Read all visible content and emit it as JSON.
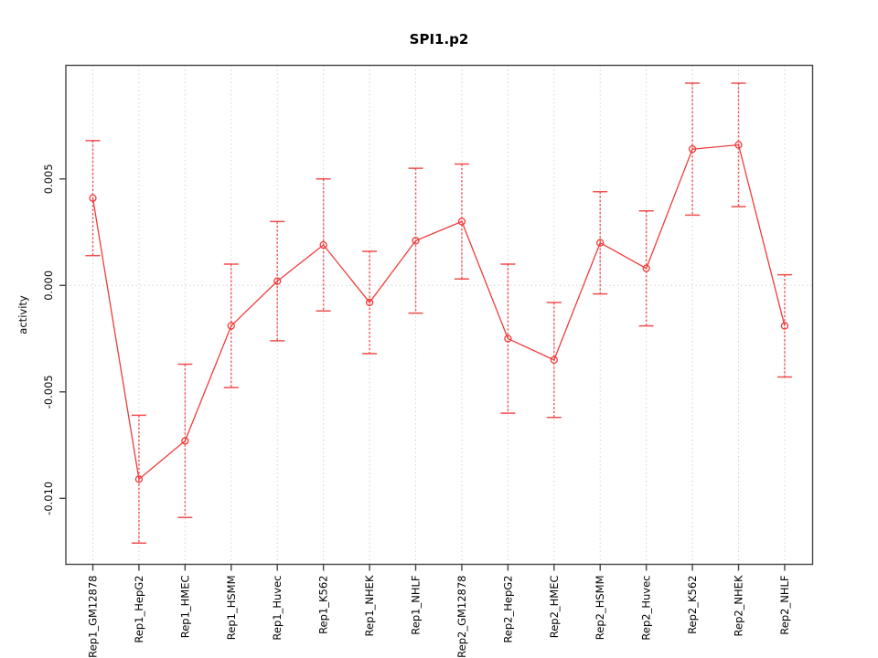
{
  "figure": {
    "title": "SPI1.p2",
    "y_axis_title": "activity"
  },
  "chart_data": {
    "type": "line",
    "title": "SPI1.p2",
    "xlabel": "",
    "ylabel": "activity",
    "legend": "none",
    "grid": {
      "vertical_dotted_gridlines": true,
      "horizontal_zero_dotted_line": true
    },
    "categories": [
      "Rep1_GM12878",
      "Rep1_HepG2",
      "Rep1_HMEC",
      "Rep1_HSMM",
      "Rep1_Huvec",
      "Rep1_K562",
      "Rep1_NHEK",
      "Rep1_NHLF",
      "Rep2_GM12878",
      "Rep2_HepG2",
      "Rep2_HMEC",
      "Rep2_HSMM",
      "Rep2_Huvec",
      "Rep2_K562",
      "Rep2_NHEK",
      "Rep2_NHLF"
    ],
    "series": [
      {
        "name": "activity",
        "marker": "open-circle",
        "values": [
          0.0041,
          -0.0091,
          -0.0073,
          -0.0019,
          0.0002,
          0.0019,
          -0.0008,
          0.0021,
          0.003,
          -0.0025,
          -0.0035,
          0.002,
          0.0008,
          0.0064,
          0.0066,
          -0.0019
        ],
        "errors": [
          0.0027,
          0.003,
          0.0036,
          0.0029,
          0.0028,
          0.0031,
          0.0024,
          0.0034,
          0.0027,
          0.0035,
          0.0027,
          0.0024,
          0.0027,
          0.0031,
          0.0029,
          0.0024
        ]
      }
    ],
    "yticks": [
      0.005,
      0.0,
      -0.005,
      -0.01
    ],
    "ytick_labels": [
      "0.005",
      "0.000",
      "-0.005",
      "-0.010"
    ],
    "ylim": [
      -0.0131,
      0.0103
    ],
    "colors": {
      "series": "#f13b3b",
      "gridline": "#d4d4d4",
      "axis": "#444444",
      "text": "#000000",
      "background": "#ffffff"
    }
  }
}
